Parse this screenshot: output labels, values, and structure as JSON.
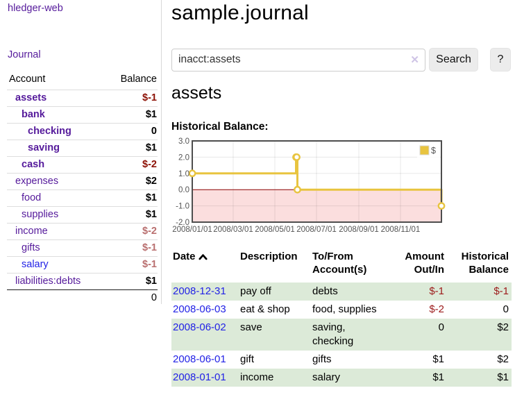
{
  "app": {
    "brand": "hledger-web"
  },
  "nav": {
    "journal_label": "Journal"
  },
  "sidebar": {
    "headers": {
      "account": "Account",
      "balance": "Balance"
    },
    "accounts": [
      {
        "name": "assets",
        "indent": 1,
        "bold": true,
        "blue": false,
        "balance": "$-1",
        "bal": "neg"
      },
      {
        "name": "bank",
        "indent": 2,
        "bold": true,
        "blue": false,
        "balance": "$1",
        "bal": "plain"
      },
      {
        "name": "checking",
        "indent": 3,
        "bold": true,
        "blue": false,
        "balance": "0",
        "bal": "plain"
      },
      {
        "name": "saving",
        "indent": 3,
        "bold": true,
        "blue": false,
        "balance": "$1",
        "bal": "plain"
      },
      {
        "name": "cash",
        "indent": 2,
        "bold": true,
        "blue": false,
        "balance": "$-2",
        "bal": "neg"
      },
      {
        "name": "expenses",
        "indent": 1,
        "bold": false,
        "blue": false,
        "balance": "$2",
        "bal": "plain"
      },
      {
        "name": "food",
        "indent": 2,
        "bold": false,
        "blue": false,
        "balance": "$1",
        "bal": "plain"
      },
      {
        "name": "supplies",
        "indent": 2,
        "bold": false,
        "blue": false,
        "balance": "$1",
        "bal": "plain"
      },
      {
        "name": "income",
        "indent": 1,
        "bold": false,
        "blue": false,
        "balance": "$-2",
        "bal": "dim"
      },
      {
        "name": "gifts",
        "indent": 2,
        "bold": false,
        "blue": false,
        "balance": "$-1",
        "bal": "dim"
      },
      {
        "name": "salary",
        "indent": 2,
        "bold": false,
        "blue": true,
        "balance": "$-1",
        "bal": "dim"
      },
      {
        "name": "liabilities:debts",
        "indent": 1,
        "bold": false,
        "blue": false,
        "balance": "$1",
        "bal": "plain"
      }
    ],
    "total": "0"
  },
  "header": {
    "title": "sample.journal"
  },
  "search": {
    "value": "inacct:assets",
    "clear_icon": "✕",
    "button_label": "Search",
    "help_label": "?"
  },
  "account_view": {
    "heading": "assets",
    "chart_title": "Historical Balance:"
  },
  "chart_data": {
    "type": "line",
    "step": true,
    "title": "Historical Balance",
    "series": [
      {
        "name": "$",
        "color": "#e8c43f",
        "points": [
          {
            "date": "2008-01-01",
            "value": 1
          },
          {
            "date": "2008-06-01",
            "value": 2
          },
          {
            "date": "2008-06-02",
            "value": 2
          },
          {
            "date": "2008-06-03",
            "value": 0
          },
          {
            "date": "2008-12-31",
            "value": -1
          }
        ]
      }
    ],
    "xlim": [
      "2008-01-01",
      "2008-12-31"
    ],
    "ylim": [
      -2,
      3
    ],
    "yticks": [
      "3.0",
      "2.0",
      "1.0",
      "0.0",
      "-1.0",
      "-2.0"
    ],
    "xticks": [
      "2008/01/01",
      "2008/03/01",
      "2008/05/01",
      "2008/07/01",
      "2008/09/01",
      "2008/11/01"
    ],
    "legend": {
      "label": "$",
      "position": "top-right"
    },
    "grid": true,
    "negative_region_color": "#fbdede",
    "zero_line_color": "#8b0000",
    "axis_text_color": "#545454",
    "border_color": "#4d4d4d"
  },
  "register": {
    "headers": {
      "date": "Date",
      "description": "Description",
      "tofrom": "To/From Account(s)",
      "amount": "Amount Out/In",
      "balance": "Historical Balance"
    },
    "rows": [
      {
        "date": "2008-12-31",
        "description": "pay off",
        "tofrom": "debts",
        "amount": "$-1",
        "amount_neg": true,
        "balance": "$-1",
        "balance_neg": true,
        "shaded": true
      },
      {
        "date": "2008-06-03",
        "description": "eat & shop",
        "tofrom": "food, supplies",
        "amount": "$-2",
        "amount_neg": true,
        "balance": "0",
        "balance_neg": false,
        "shaded": false
      },
      {
        "date": "2008-06-02",
        "description": "save",
        "tofrom": "saving, checking",
        "amount": "0",
        "amount_neg": false,
        "balance": "$2",
        "balance_neg": false,
        "shaded": true
      },
      {
        "date": "2008-06-01",
        "description": "gift",
        "tofrom": "gifts",
        "amount": "$1",
        "amount_neg": false,
        "balance": "$2",
        "balance_neg": false,
        "shaded": false
      },
      {
        "date": "2008-01-01",
        "description": "income",
        "tofrom": "salary",
        "amount": "$1",
        "amount_neg": false,
        "balance": "$1",
        "balance_neg": false,
        "shaded": true
      }
    ]
  },
  "colors": {
    "link_purple": "#551a9b",
    "link_blue": "#2222e6",
    "negative_strong": "#8c1004",
    "negative_dim": "#b96f6f",
    "register_negative": "#9c1a1a",
    "shaded_row_green": "#dcead8",
    "chart_gold": "#e8c43f"
  }
}
